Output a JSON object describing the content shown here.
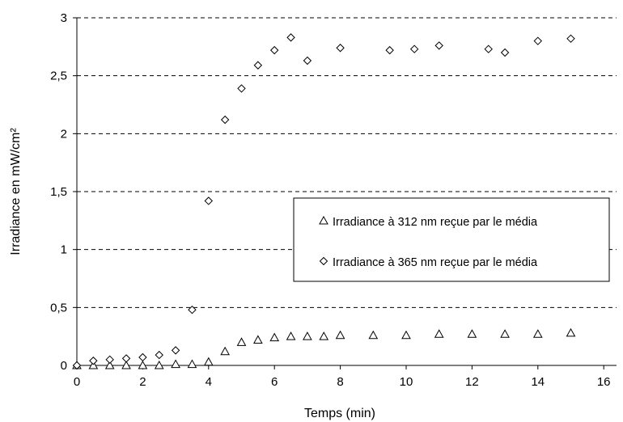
{
  "chart_data": {
    "type": "scatter",
    "xlabel": "Temps (min)",
    "ylabel": "Irradiance en mW/cm²",
    "xlim": [
      0,
      16
    ],
    "ylim": [
      0,
      3
    ],
    "x_ticks": [
      "0",
      "2",
      "4",
      "6",
      "8",
      "10",
      "12",
      "14",
      "16"
    ],
    "y_ticks": [
      "0",
      "0,5",
      "1",
      "1,5",
      "2",
      "2,5",
      "3"
    ],
    "grid": "horizontal dashed",
    "legend_position": "right-center",
    "series": [
      {
        "name": "Irradiance à 312 nm reçue par le média",
        "marker": "triangle",
        "points": [
          [
            0,
            0.0
          ],
          [
            0.5,
            0.0
          ],
          [
            1,
            0.0
          ],
          [
            1.5,
            0.0
          ],
          [
            2,
            0.0
          ],
          [
            2.5,
            0.0
          ],
          [
            3,
            0.01
          ],
          [
            3.5,
            0.01
          ],
          [
            4,
            0.03
          ],
          [
            4.5,
            0.12
          ],
          [
            5,
            0.2
          ],
          [
            5.5,
            0.22
          ],
          [
            6,
            0.24
          ],
          [
            6.5,
            0.25
          ],
          [
            7,
            0.25
          ],
          [
            7.5,
            0.25
          ],
          [
            8,
            0.26
          ],
          [
            9,
            0.26
          ],
          [
            10,
            0.26
          ],
          [
            11,
            0.27
          ],
          [
            12,
            0.27
          ],
          [
            13,
            0.27
          ],
          [
            14,
            0.27
          ],
          [
            15,
            0.28
          ]
        ]
      },
      {
        "name": "Irradiance à 365 nm reçue par le média",
        "marker": "diamond",
        "points": [
          [
            0,
            0.0
          ],
          [
            0.5,
            0.04
          ],
          [
            1,
            0.05
          ],
          [
            1.5,
            0.06
          ],
          [
            2,
            0.07
          ],
          [
            2.5,
            0.09
          ],
          [
            3,
            0.13
          ],
          [
            3.5,
            0.48
          ],
          [
            4,
            1.42
          ],
          [
            4.5,
            2.12
          ],
          [
            5,
            2.39
          ],
          [
            5.5,
            2.59
          ],
          [
            6,
            2.72
          ],
          [
            6.5,
            2.83
          ],
          [
            7,
            2.63
          ],
          [
            8,
            2.74
          ],
          [
            9.5,
            2.72
          ],
          [
            10.25,
            2.73
          ],
          [
            11,
            2.76
          ],
          [
            12.5,
            2.73
          ],
          [
            13,
            2.7
          ],
          [
            14,
            2.8
          ],
          [
            15,
            2.82
          ]
        ]
      }
    ]
  }
}
